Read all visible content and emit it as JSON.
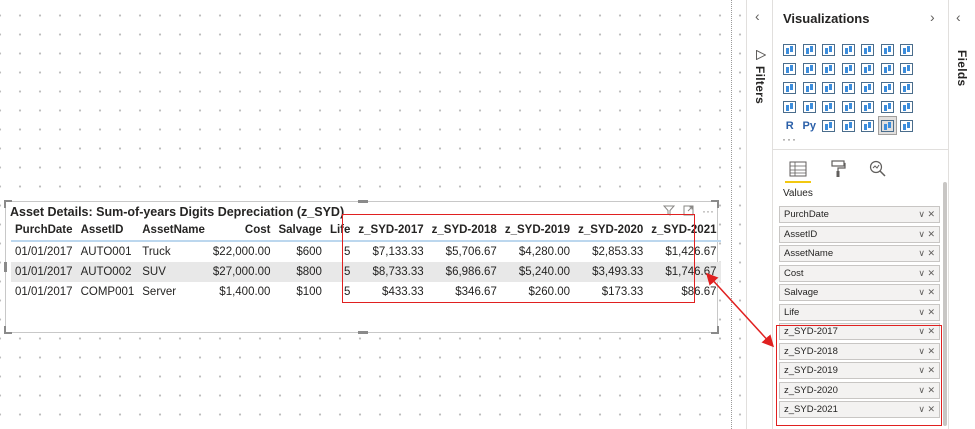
{
  "visual": {
    "title": "Asset Details: Sum-of-years Digits Depreciation (z_SYD)",
    "columns": [
      "PurchDate",
      "AssetID",
      "AssetName",
      "Cost",
      "Salvage",
      "Life",
      "z_SYD-2017",
      "z_SYD-2018",
      "z_SYD-2019",
      "z_SYD-2020",
      "z_SYD-2021"
    ],
    "rows": [
      [
        "01/01/2017",
        "AUTO001",
        "Truck",
        "$22,000.00",
        "$600",
        "5",
        "$7,133.33",
        "$5,706.67",
        "$4,280.00",
        "$2,853.33",
        "$1,426.67"
      ],
      [
        "01/01/2017",
        "AUTO002",
        "SUV",
        "$27,000.00",
        "$800",
        "5",
        "$8,733.33",
        "$6,986.67",
        "$5,240.00",
        "$3,493.33",
        "$1,746.67"
      ],
      [
        "01/01/2017",
        "COMP001",
        "Server",
        "$1,400.00",
        "$100",
        "5",
        "$433.33",
        "$346.67",
        "$260.00",
        "$173.33",
        "$86.67"
      ]
    ],
    "more_icon": "···"
  },
  "filters_pane": {
    "label": "Filters",
    "collapse_icon": "‹"
  },
  "viz_pane": {
    "title": "Visualizations",
    "chevron": "›",
    "r_label": "R",
    "py_label": "Py",
    "more": "···",
    "values_label": "Values",
    "wells": [
      "PurchDate",
      "AssetID",
      "AssetName",
      "Cost",
      "Salvage",
      "Life",
      "z_SYD-2017",
      "z_SYD-2018",
      "z_SYD-2019",
      "z_SYD-2020",
      "z_SYD-2021"
    ],
    "well_controls": "∨ ✕"
  },
  "fields_pane": {
    "label": "Fields",
    "collapse_icon": "‹"
  },
  "colors": {
    "highlight": "#e02020",
    "accent": "#f2c811",
    "header_underline": "#bcd7ee"
  }
}
